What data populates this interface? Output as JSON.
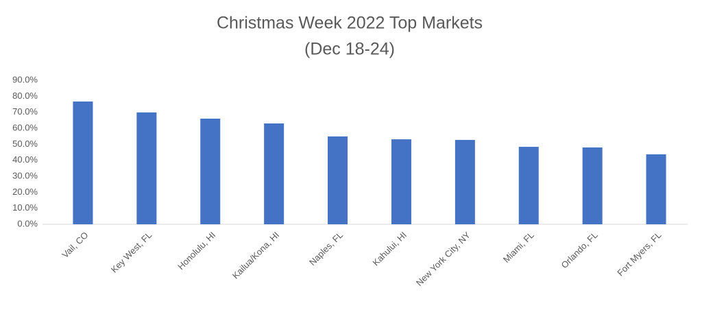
{
  "chart_data": {
    "type": "bar",
    "title": "Christmas Week 2022 Top Markets",
    "subtitle": "(Dec 18-24)",
    "categories": [
      "Vail, CO",
      "Key West, FL",
      "Honolulu, HI",
      "Kailua/Kona, HI",
      "Naples, FL",
      "Kahului, HI",
      "New York City, NY",
      "Miami, FL",
      "Orlando, FL",
      "Fort Myers, FL"
    ],
    "values": [
      76.7,
      69.9,
      66.0,
      63.0,
      54.9,
      53.1,
      52.7,
      48.4,
      48.0,
      43.7
    ],
    "color": "#4472c4",
    "ylim": [
      0,
      90
    ],
    "yticks": [
      {
        "value": 0,
        "label": "0.0%"
      },
      {
        "value": 10,
        "label": "10.0%"
      },
      {
        "value": 20,
        "label": "20.0%"
      },
      {
        "value": 30,
        "label": "30.0%"
      },
      {
        "value": 40,
        "label": "40.0%"
      },
      {
        "value": 50,
        "label": "50.0%"
      },
      {
        "value": 60,
        "label": "60.0%"
      },
      {
        "value": 70,
        "label": "70.0%"
      },
      {
        "value": 80,
        "label": "80.0%"
      },
      {
        "value": 90,
        "label": "90.0%"
      }
    ],
    "grid": false
  }
}
